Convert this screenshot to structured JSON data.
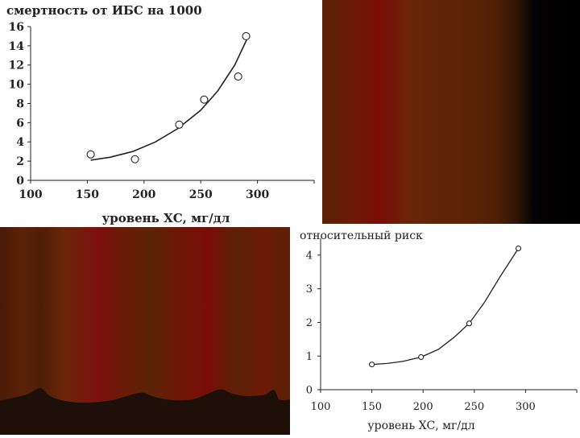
{
  "chart_data": [
    {
      "type": "scatter",
      "title": "смертность от ИБС на 1000",
      "xlabel": "уровень ХС, мг/дл",
      "ylabel": "",
      "xlim": [
        100,
        350
      ],
      "ylim": [
        0,
        16
      ],
      "xticks": [
        "100",
        "150",
        "200",
        "250",
        "300"
      ],
      "yticks": [
        "0",
        "2",
        "4",
        "6",
        "8",
        "10",
        "12",
        "14",
        "16"
      ],
      "points": [
        {
          "x": 153,
          "y": 2.7
        },
        {
          "x": 192,
          "y": 2.2
        },
        {
          "x": 231,
          "y": 5.8
        },
        {
          "x": 253,
          "y": 8.4
        },
        {
          "x": 283,
          "y": 10.8
        },
        {
          "x": 290,
          "y": 15.0
        }
      ],
      "trend": [
        {
          "x": 153,
          "y": 2.1
        },
        {
          "x": 170,
          "y": 2.4
        },
        {
          "x": 190,
          "y": 3.0
        },
        {
          "x": 210,
          "y": 4.0
        },
        {
          "x": 230,
          "y": 5.4
        },
        {
          "x": 250,
          "y": 7.3
        },
        {
          "x": 265,
          "y": 9.3
        },
        {
          "x": 280,
          "y": 12.0
        },
        {
          "x": 292,
          "y": 15.0
        }
      ],
      "grid": false
    },
    {
      "type": "line",
      "title": "относительный риск",
      "xlabel": "уровень ХС, мг/дл",
      "ylabel": "",
      "xlim": [
        100,
        350
      ],
      "ylim": [
        0,
        4.5
      ],
      "xticks": [
        "100",
        "150",
        "200",
        "250",
        "300"
      ],
      "yticks": [
        "0",
        "1",
        "2",
        "3",
        "4"
      ],
      "points": [
        {
          "x": 150,
          "y": 0.75
        },
        {
          "x": 198,
          "y": 0.97
        },
        {
          "x": 245,
          "y": 1.97
        },
        {
          "x": 293,
          "y": 4.2
        }
      ],
      "trend": [
        {
          "x": 150,
          "y": 0.75
        },
        {
          "x": 165,
          "y": 0.78
        },
        {
          "x": 180,
          "y": 0.84
        },
        {
          "x": 198,
          "y": 0.97
        },
        {
          "x": 215,
          "y": 1.2
        },
        {
          "x": 230,
          "y": 1.55
        },
        {
          "x": 245,
          "y": 1.97
        },
        {
          "x": 260,
          "y": 2.6
        },
        {
          "x": 275,
          "y": 3.35
        },
        {
          "x": 293,
          "y": 4.2
        }
      ],
      "grid": false
    }
  ],
  "colors": {
    "axis": "#222222",
    "marker": "#222222",
    "curve": "#222222",
    "curtain_dark": "#1e0f08"
  }
}
